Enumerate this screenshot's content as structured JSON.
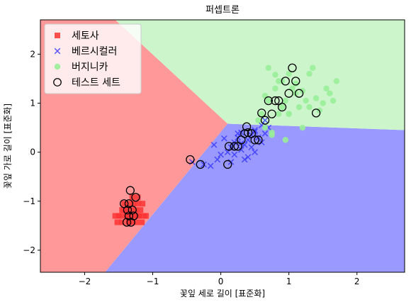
{
  "chart_data": {
    "type": "scatter",
    "title": "퍼셉트론",
    "xlabel": "꽃잎 세로 길이 [표준화]",
    "ylabel": "꽃잎 가로 길이 [표준화]",
    "xlim": [
      -2.65,
      2.7
    ],
    "ylim": [
      -2.45,
      2.7
    ],
    "xticks": [
      -2,
      -1,
      0,
      1,
      2
    ],
    "yticks": [
      -2,
      -1,
      0,
      1,
      2
    ],
    "xtick_labels": [
      "−2",
      "−1",
      "0",
      "1",
      "2"
    ],
    "ytick_labels": [
      "−2",
      "−1",
      "0",
      "1",
      "2"
    ],
    "grid": false,
    "legend_position": "top-left",
    "decision_regions": {
      "setosa_color": "#ff9999",
      "versicolor_color": "#9999ff",
      "virginica_color": "#ccf5cc",
      "boundary_point": [
        0.1,
        0.58
      ],
      "setosa_edge_top": [
        -1.55,
        2.7
      ],
      "setosa_edge_bottom": [
        -1.7,
        -2.45
      ],
      "versicolor_edge_right": [
        2.7,
        0.45
      ]
    },
    "legend": [
      {
        "label": "세토사",
        "marker": "square",
        "color": "#ff3333"
      },
      {
        "label": "베르시컬러",
        "marker": "x",
        "color": "#3333ff"
      },
      {
        "label": "버지니카",
        "marker": "circle",
        "color": "#99ee99"
      },
      {
        "label": "테스트 세트",
        "marker": "open-circle",
        "color": "#000000"
      }
    ],
    "series": [
      {
        "name": "세토사",
        "color": "#ff3333",
        "marker": "square",
        "x": [
          -1.42,
          -1.35,
          -1.28,
          -1.22,
          -1.45,
          -1.38,
          -1.32,
          -1.25,
          -1.18,
          -1.5,
          -1.4,
          -1.33,
          -1.27,
          -1.2,
          -1.13,
          -1.55,
          -1.48,
          -1.36,
          -1.3,
          -1.24,
          -1.16,
          -1.1,
          -1.45,
          -1.38,
          -1.3,
          -1.22,
          -1.15,
          -1.52,
          -1.42,
          -1.35,
          -1.28,
          -1.2
        ],
        "y": [
          -1.05,
          -1.05,
          -1.05,
          -1.05,
          -1.18,
          -1.18,
          -1.18,
          -1.18,
          -1.18,
          -1.3,
          -1.3,
          -1.3,
          -1.3,
          -1.3,
          -1.3,
          -1.3,
          -1.3,
          -1.43,
          -1.43,
          -1.43,
          -1.43,
          -1.3,
          -1.43,
          -1.3,
          -0.92,
          -0.92,
          -1.05,
          -1.43,
          -1.18,
          -1.43,
          -1.3,
          -1.3
        ]
      },
      {
        "name": "베르시컬러",
        "color": "#3333ff",
        "marker": "x",
        "x": [
          -0.42,
          -0.25,
          -0.15,
          -0.1,
          -0.05,
          0.0,
          0.1,
          0.15,
          0.2,
          0.25,
          0.3,
          0.35,
          0.4,
          0.45,
          0.5,
          0.55,
          0.6,
          0.65,
          0.7,
          0.2,
          0.3,
          0.4,
          0.5,
          0.25,
          0.35,
          0.45,
          0.6,
          0.65,
          0.15,
          0.05,
          0.3,
          0.5
        ],
        "y": [
          -0.2,
          -0.25,
          -0.28,
          0.15,
          -0.15,
          -0.05,
          0.0,
          0.1,
          0.2,
          0.3,
          0.4,
          0.15,
          0.25,
          0.35,
          0.45,
          0.3,
          0.55,
          0.65,
          0.5,
          -0.05,
          0.05,
          -0.1,
          0.0,
          0.38,
          -0.15,
          0.1,
          0.2,
          0.38,
          -0.2,
          0.28,
          0.18,
          0.42
        ]
      },
      {
        "name": "버지니카",
        "color": "#99ee99",
        "marker": "circle",
        "x": [
          0.6,
          0.7,
          0.8,
          0.9,
          1.0,
          1.1,
          1.2,
          1.3,
          1.4,
          1.5,
          1.6,
          1.7,
          0.65,
          0.75,
          0.85,
          0.95,
          1.05,
          1.15,
          1.25,
          1.35,
          1.45,
          0.7,
          0.8,
          0.9,
          1.0,
          1.1,
          1.2,
          1.3,
          0.75,
          0.85,
          0.95,
          1.0,
          0.55,
          0.65,
          1.55,
          1.65
        ],
        "y": [
          0.78,
          1.05,
          1.3,
          1.45,
          1.6,
          1.4,
          1.25,
          1.6,
          1.1,
          1.0,
          1.2,
          1.45,
          0.5,
          0.4,
          0.78,
          1.05,
          1.3,
          0.92,
          1.05,
          1.72,
          0.85,
          1.72,
          1.58,
          0.92,
          0.78,
          1.2,
          0.5,
          0.92,
          0.35,
          1.45,
          0.25,
          0.78,
          0.65,
          1.15,
          1.3,
          1.05
        ]
      },
      {
        "name": "테스트 세트",
        "color": "#000000",
        "marker": "open-circle",
        "x": [
          -1.33,
          -1.25,
          -1.42,
          -1.37,
          -1.3,
          -1.35,
          -1.28,
          -1.38,
          -1.32,
          -1.35,
          -0.45,
          -0.3,
          0.1,
          0.2,
          0.25,
          0.3,
          0.35,
          0.4,
          0.45,
          0.5,
          0.55,
          0.12,
          0.38,
          0.6,
          0.7,
          0.75,
          0.8,
          0.85,
          0.9,
          0.95,
          1.0,
          1.05,
          1.1,
          1.15,
          1.4,
          0.65
        ],
        "y": [
          -0.78,
          -0.92,
          -1.05,
          -1.18,
          -1.18,
          -1.3,
          -1.3,
          -1.43,
          -1.43,
          -1.05,
          -0.15,
          -0.25,
          -0.25,
          0.12,
          0.12,
          0.25,
          0.38,
          0.4,
          0.38,
          0.25,
          0.25,
          0.12,
          0.52,
          0.8,
          1.05,
          0.78,
          1.05,
          1.05,
          0.92,
          1.45,
          1.2,
          1.72,
          1.45,
          1.2,
          0.8,
          0.65
        ]
      }
    ]
  }
}
